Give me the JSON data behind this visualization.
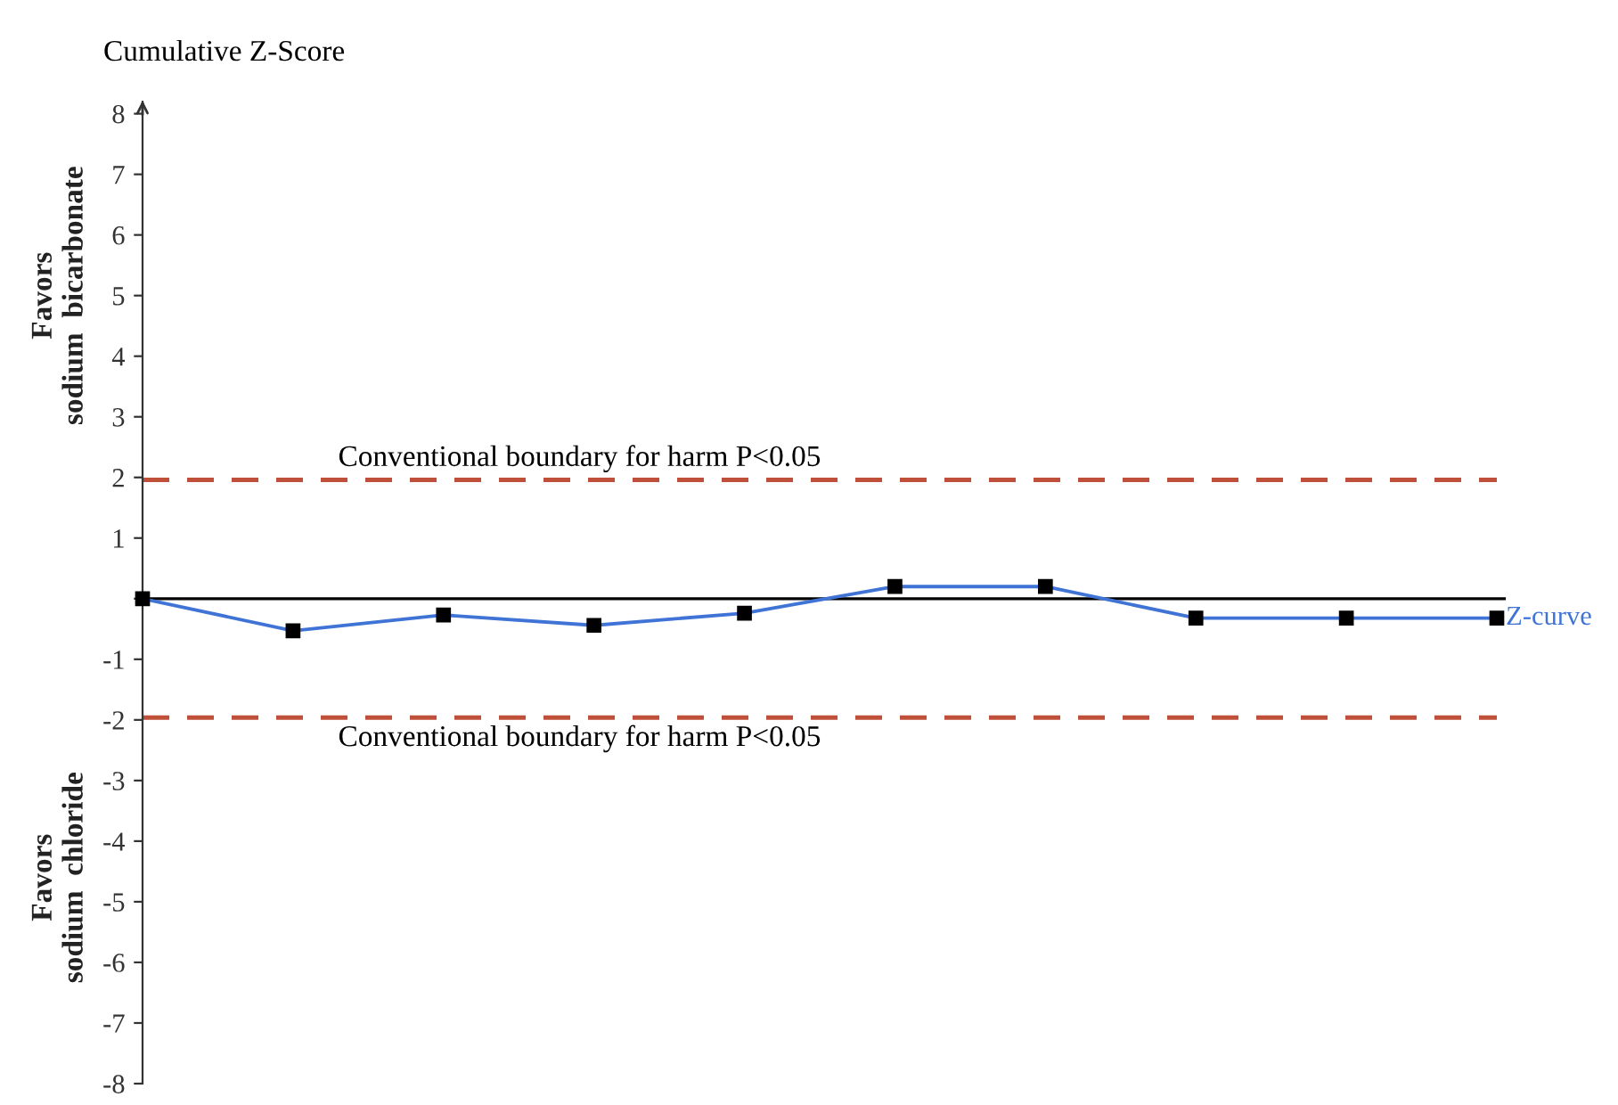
{
  "chart_data": {
    "type": "line",
    "ylabel": "Cumulative Z-Score",
    "categories": [
      null,
      null,
      null,
      null,
      null,
      null,
      null,
      null,
      null,
      null
    ],
    "series": [
      {
        "name": "Z-curve",
        "color": "#3f74d6",
        "values": [
          0,
          -0.53,
          -0.27,
          -0.44,
          -0.24,
          0.2,
          0.2,
          -0.32,
          -0.32,
          -0.32
        ]
      }
    ],
    "ylim": [
      -8,
      8.2
    ],
    "yticks": [
      -8,
      -7,
      -6,
      -5,
      -4,
      -3,
      -2,
      -1,
      {
        "value": 0,
        "label": null
      },
      1,
      2,
      3,
      4,
      5,
      6,
      7,
      8
    ],
    "ref_lines": [
      {
        "axis": "y",
        "value": 1.96,
        "label": "Conventional boundary for harm P<0.05",
        "color": "#c0503a",
        "line_style": "dashed"
      },
      {
        "axis": "y",
        "value": -1.96,
        "label": "Conventional boundary for harm P<0.05",
        "color": "#c0503a",
        "line_style": "dashed"
      },
      {
        "axis": "y",
        "value": 0,
        "color": "#000000",
        "line_style": "solid"
      }
    ],
    "annotations": [
      "Favors\nsodium  bicarbonate",
      "Favors\nsodium  chloride"
    ],
    "marker": "square",
    "line_style": "solid",
    "grid": false,
    "tick_labels": "y"
  }
}
